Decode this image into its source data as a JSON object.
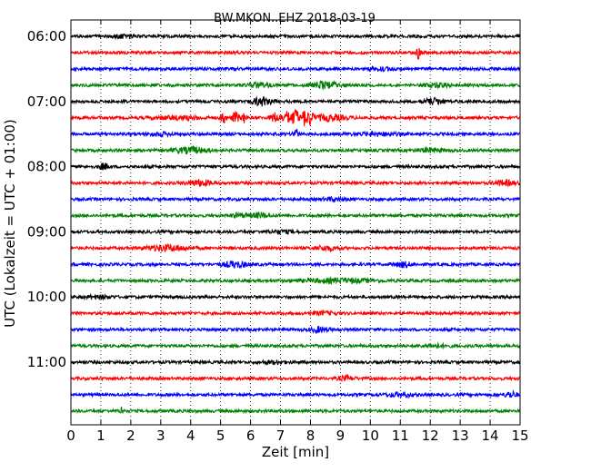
{
  "chart_data": {
    "type": "line",
    "title": "BW.MKON..EHZ 2018-03-19",
    "xlabel": "Zeit  [min]",
    "ylabel": "UTC (Lokalzeit = UTC + 01:00)",
    "xlim": [
      0,
      15
    ],
    "x_ticks": [
      "0",
      "1",
      "2",
      "3",
      "4",
      "5",
      "6",
      "7",
      "8",
      "9",
      "10",
      "11",
      "12",
      "13",
      "14",
      "15"
    ],
    "y_ticks": [
      "06:00",
      "07:00",
      "08:00",
      "09:00",
      "10:00",
      "11:00"
    ],
    "grid": "vertical-dotted",
    "color_cycle": [
      "#000000",
      "#ff0000",
      "#0000ff",
      "#008000"
    ],
    "traces_per_hour": 4,
    "minutes_per_trace": 15,
    "traces": [
      {
        "start": "06:00",
        "color": "#000000"
      },
      {
        "start": "06:15",
        "color": "#ff0000"
      },
      {
        "start": "06:30",
        "color": "#0000ff"
      },
      {
        "start": "06:45",
        "color": "#008000"
      },
      {
        "start": "07:00",
        "color": "#000000"
      },
      {
        "start": "07:15",
        "color": "#ff0000"
      },
      {
        "start": "07:30",
        "color": "#0000ff"
      },
      {
        "start": "07:45",
        "color": "#008000"
      },
      {
        "start": "08:00",
        "color": "#000000"
      },
      {
        "start": "08:15",
        "color": "#ff0000"
      },
      {
        "start": "08:30",
        "color": "#0000ff"
      },
      {
        "start": "08:45",
        "color": "#008000"
      },
      {
        "start": "09:00",
        "color": "#000000"
      },
      {
        "start": "09:15",
        "color": "#ff0000"
      },
      {
        "start": "09:30",
        "color": "#0000ff"
      },
      {
        "start": "09:45",
        "color": "#008000"
      },
      {
        "start": "10:00",
        "color": "#000000"
      },
      {
        "start": "10:15",
        "color": "#ff0000"
      },
      {
        "start": "10:30",
        "color": "#0000ff"
      },
      {
        "start": "10:45",
        "color": "#008000"
      },
      {
        "start": "11:00",
        "color": "#000000"
      },
      {
        "start": "11:15",
        "color": "#ff0000"
      },
      {
        "start": "11:30",
        "color": "#0000ff"
      },
      {
        "start": "11:45",
        "color": "#008000"
      }
    ]
  }
}
